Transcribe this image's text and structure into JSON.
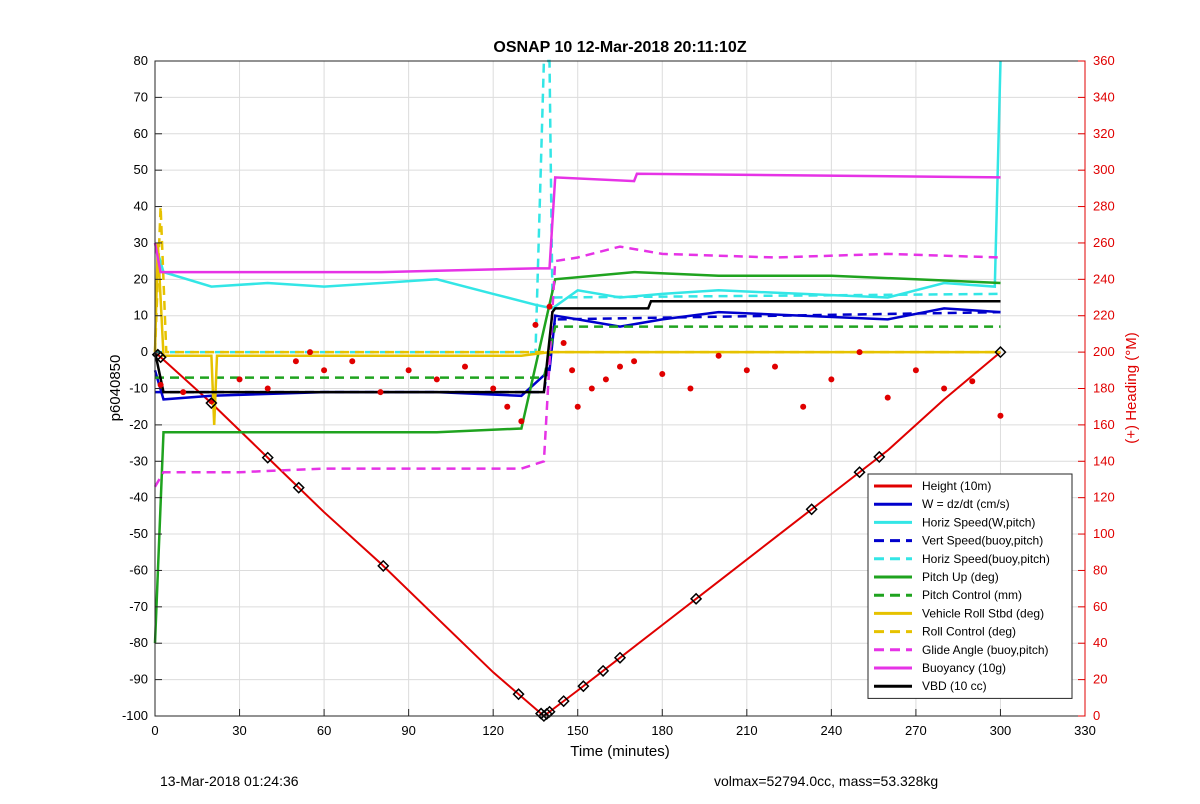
{
  "chart_data": {
    "type": "line",
    "title": "OSNAP 10 12-Mar-2018 20:11:10Z",
    "xlabel": "Time (minutes)",
    "ylabel": "p6040850",
    "y2label": "(+) Heading (°M)",
    "xlim": [
      0,
      330
    ],
    "ylim": [
      -100,
      80
    ],
    "y2lim": [
      0,
      360
    ],
    "xticks": [
      0,
      30,
      60,
      90,
      120,
      150,
      180,
      210,
      240,
      270,
      300,
      330
    ],
    "yticks": [
      -100,
      -90,
      -80,
      -70,
      -60,
      -50,
      -40,
      -30,
      -20,
      -10,
      0,
      10,
      20,
      30,
      40,
      50,
      60,
      70,
      80
    ],
    "y2ticks": [
      0,
      20,
      40,
      60,
      80,
      100,
      120,
      140,
      160,
      180,
      200,
      220,
      240,
      260,
      280,
      300,
      320,
      340,
      360
    ],
    "grid": true,
    "legend_position": "bottom-right",
    "colors": {
      "red": "#e00000",
      "blue": "#0000cc",
      "cyan": "#33e6e6",
      "green": "#1fa31f",
      "yellow": "#e6c200",
      "magenta": "#e633e6",
      "black": "#000000",
      "right_axis": "#e00000"
    },
    "legend": [
      {
        "label": "Height (10m)",
        "color": "#e00000",
        "dash": false
      },
      {
        "label": "W = dz/dt (cm/s)",
        "color": "#0000cc",
        "dash": false
      },
      {
        "label": "Horiz Speed(W,pitch)",
        "color": "#33e6e6",
        "dash": false
      },
      {
        "label": "Vert Speed(buoy,pitch)",
        "color": "#0000cc",
        "dash": true
      },
      {
        "label": "Horiz Speed(buoy,pitch)",
        "color": "#33e6e6",
        "dash": true
      },
      {
        "label": "Pitch Up (deg)",
        "color": "#1fa31f",
        "dash": false
      },
      {
        "label": "Pitch Control (mm)",
        "color": "#1fa31f",
        "dash": true
      },
      {
        "label": "Vehicle Roll Stbd (deg)",
        "color": "#e6c200",
        "dash": false
      },
      {
        "label": "Roll Control (deg)",
        "color": "#e6c200",
        "dash": true
      },
      {
        "label": "Glide Angle (buoy,pitch)",
        "color": "#e633e6",
        "dash": true
      },
      {
        "label": "Buoyancy (10g)",
        "color": "#e633e6",
        "dash": false
      },
      {
        "label": "VBD (10 cc)",
        "color": "#000000",
        "dash": false
      }
    ],
    "series": [
      {
        "name": "Height (10m)",
        "x": [
          0,
          20,
          40,
          60,
          80,
          100,
          120,
          138,
          150,
          160,
          180,
          200,
          220,
          240,
          260,
          280,
          300
        ],
        "y": [
          0,
          -14,
          -29,
          -44,
          -58,
          -73,
          -88,
          -100,
          -93,
          -87,
          -75,
          -63,
          -51,
          -39,
          -27,
          -13,
          0
        ]
      },
      {
        "name": "W = dz/dt (cm/s)",
        "x": [
          0,
          3,
          20,
          60,
          100,
          130,
          140,
          142,
          150,
          165,
          180,
          200,
          230,
          260,
          280,
          300
        ],
        "y": [
          -5,
          -13,
          -12,
          -11,
          -11,
          -12,
          -5,
          10,
          9,
          7,
          9,
          11,
          10,
          9,
          12,
          11
        ]
      },
      {
        "name": "Horiz Speed(W,pitch)",
        "x": [
          0,
          3,
          20,
          40,
          60,
          80,
          100,
          120,
          135,
          141,
          150,
          165,
          180,
          200,
          230,
          260,
          280,
          298,
          300
        ],
        "y": [
          30,
          22,
          18,
          19,
          18,
          19,
          20,
          16,
          13,
          12,
          17,
          15,
          16,
          17,
          16,
          15,
          19,
          18,
          80
        ]
      },
      {
        "name": "Vert Speed(buoy,pitch)",
        "x": [
          0,
          138,
          142,
          300
        ],
        "y": [
          -11,
          -11,
          9,
          11
        ]
      },
      {
        "name": "Horiz Speed(buoy,pitch)",
        "x": [
          0,
          135,
          138,
          140,
          141,
          300
        ],
        "y": [
          0,
          0,
          80,
          80,
          15,
          16
        ]
      },
      {
        "name": "Pitch Up (deg)",
        "x": [
          0,
          3,
          30,
          60,
          100,
          130,
          142,
          170,
          200,
          240,
          270,
          300
        ],
        "y": [
          -80,
          -22,
          -22,
          -22,
          -22,
          -21,
          20,
          22,
          21,
          21,
          20,
          19
        ]
      },
      {
        "name": "Pitch Control (mm)",
        "x": [
          0,
          138,
          142,
          300
        ],
        "y": [
          -7,
          -7,
          7,
          7
        ]
      },
      {
        "name": "Vehicle Roll Stbd (deg)",
        "x": [
          0,
          1,
          3,
          20,
          21,
          22,
          60,
          100,
          130,
          140,
          142,
          300
        ],
        "y": [
          0,
          30,
          -1,
          -1,
          -20,
          -1,
          -1,
          -1,
          -1,
          0,
          0,
          0
        ]
      },
      {
        "name": "Roll Control (deg)",
        "x": [
          0,
          2,
          4,
          40,
          80,
          120,
          140,
          141,
          150,
          200,
          250,
          300
        ],
        "y": [
          0,
          40,
          0,
          0,
          0,
          0,
          0,
          0,
          0,
          0,
          0,
          0
        ]
      },
      {
        "name": "Glide Angle (buoy,pitch)",
        "x": [
          0,
          3,
          30,
          60,
          100,
          130,
          138,
          142,
          150,
          165,
          180,
          220,
          260,
          300
        ],
        "y": [
          -37,
          -33,
          -33,
          -32,
          -32,
          -32,
          -30,
          25,
          26,
          29,
          27,
          26,
          27,
          26
        ]
      },
      {
        "name": "Buoyancy (10g)",
        "x": [
          0,
          2,
          40,
          80,
          135,
          140,
          142,
          170,
          171,
          300
        ],
        "y": [
          30,
          22,
          22,
          22,
          23,
          23,
          48,
          47,
          49,
          48
        ]
      },
      {
        "name": "VBD (10 cc)",
        "x": [
          0,
          3,
          80,
          137,
          138,
          141,
          142,
          175,
          176,
          300
        ],
        "y": [
          0,
          -11,
          -11,
          -11,
          -11,
          11,
          12,
          12,
          14,
          14
        ]
      },
      {
        "name": "Heading",
        "axis": "y2",
        "marker": "dot",
        "x": [
          2,
          10,
          20,
          30,
          40,
          50,
          55,
          60,
          70,
          80,
          90,
          100,
          110,
          120,
          125,
          130,
          135,
          140,
          145,
          148,
          150,
          155,
          160,
          165,
          170,
          180,
          190,
          200,
          210,
          220,
          230,
          240,
          250,
          260,
          270,
          280,
          290,
          300
        ],
        "y": [
          182,
          178,
          173,
          185,
          180,
          195,
          200,
          190,
          195,
          178,
          190,
          185,
          192,
          180,
          170,
          162,
          215,
          225,
          205,
          190,
          170,
          180,
          185,
          192,
          195,
          188,
          180,
          198,
          190,
          192,
          170,
          185,
          200,
          175,
          190,
          180,
          184,
          165
        ]
      }
    ],
    "dive_markers": {
      "x": [
        1,
        2,
        20,
        40,
        51,
        81,
        129,
        137,
        138,
        139,
        140,
        145,
        152,
        159,
        165,
        192,
        233,
        250,
        257,
        300
      ]
    }
  },
  "footer": {
    "left": "13-Mar-2018 01:24:36",
    "right": "volmax=52794.0cc, mass=53.328kg"
  }
}
